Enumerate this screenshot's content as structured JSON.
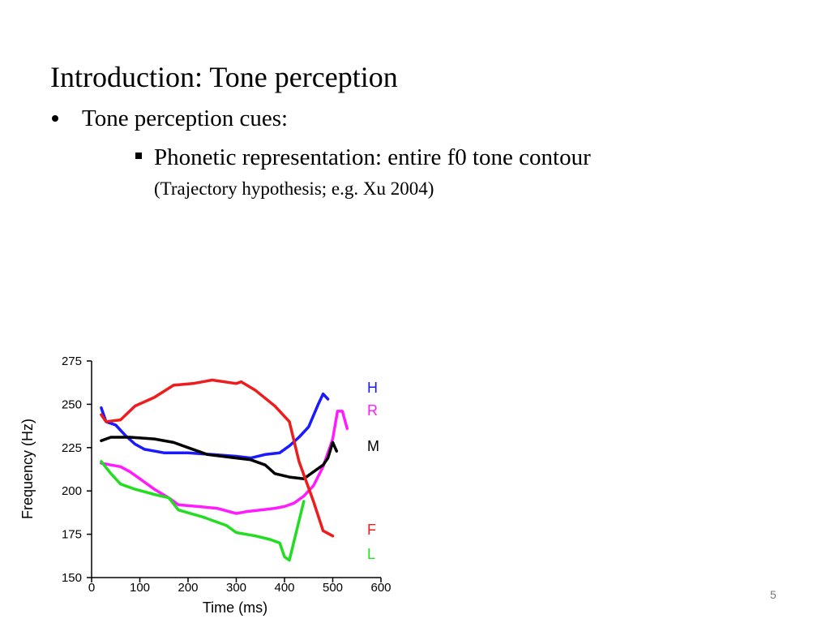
{
  "title": "Introduction: Tone perception",
  "bullets": [
    "Tone perception cues:",
    "Phonetic representation: entire f0 tone contour",
    "(Trajectory hypothesis; e.g. Xu 2004)"
  ],
  "page_number": 5,
  "chart_data": {
    "type": "line",
    "x_label": "Time (ms)",
    "y_label": "Frequency (Hz)",
    "xlim": [
      0,
      600
    ],
    "ylim": [
      150,
      275
    ],
    "xticks": [
      0,
      100,
      200,
      300,
      400,
      500,
      600
    ],
    "yticks": [
      150,
      175,
      200,
      225,
      250,
      275
    ],
    "grid": false,
    "series": [
      {
        "name": "H",
        "color": "#1a1aff",
        "x": [
          20,
          30,
          50,
          70,
          90,
          110,
          150,
          200,
          250,
          300,
          330,
          360,
          390,
          410,
          430,
          450,
          470,
          480,
          490
        ],
        "values": [
          248,
          240,
          238,
          232,
          227,
          224,
          222,
          222,
          221,
          220,
          219,
          221,
          222,
          226,
          231,
          237,
          250,
          256,
          253
        ]
      },
      {
        "name": "R",
        "color": "#ff1aff",
        "x": [
          20,
          40,
          60,
          80,
          100,
          130,
          160,
          180,
          220,
          260,
          300,
          320,
          350,
          380,
          400,
          420,
          440,
          460,
          480,
          500,
          510,
          520,
          530
        ],
        "values": [
          216,
          215,
          214,
          211,
          207,
          201,
          196,
          192,
          191,
          190,
          187,
          188,
          189,
          190,
          191,
          193,
          197,
          203,
          214,
          230,
          246,
          246,
          236
        ]
      },
      {
        "name": "M",
        "color": "#000000",
        "x": [
          20,
          40,
          80,
          130,
          170,
          200,
          240,
          300,
          330,
          360,
          380,
          410,
          440,
          460,
          480,
          490,
          500,
          508
        ],
        "values": [
          229,
          231,
          231,
          230,
          228,
          225,
          221,
          219,
          218,
          215,
          210,
          208,
          207,
          211,
          215,
          219,
          228,
          223
        ]
      },
      {
        "name": "F",
        "color": "#ee1c1c",
        "x": [
          20,
          30,
          60,
          90,
          130,
          170,
          210,
          250,
          300,
          310,
          340,
          380,
          410,
          430,
          460,
          480,
          500
        ],
        "values": [
          244,
          240,
          241,
          249,
          254,
          261,
          262,
          264,
          262,
          263,
          258,
          249,
          240,
          217,
          194,
          177,
          174
        ]
      },
      {
        "name": "L",
        "color": "#22dd22",
        "x": [
          20,
          40,
          60,
          90,
          130,
          160,
          180,
          230,
          280,
          300,
          340,
          370,
          390,
          400,
          410,
          440
        ],
        "values": [
          217,
          210,
          204,
          201,
          198,
          196,
          189,
          185,
          180,
          176,
          174,
          172,
          170,
          162,
          160,
          194
        ]
      }
    ]
  }
}
